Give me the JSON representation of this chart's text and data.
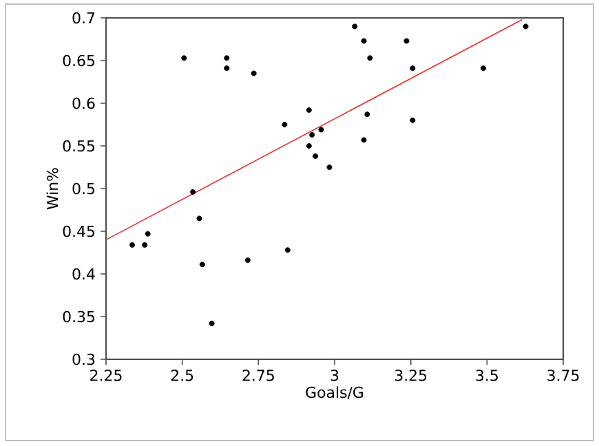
{
  "chart_data": {
    "type": "scatter",
    "xlabel": "Goals/G",
    "ylabel": "Win%",
    "xlim": [
      2.25,
      3.75
    ],
    "ylim": [
      0.3,
      0.7
    ],
    "xticks": [
      2.25,
      2.5,
      2.75,
      3,
      3.25,
      3.5,
      3.75
    ],
    "yticks": [
      0.3,
      0.35,
      0.4,
      0.45,
      0.5,
      0.55,
      0.6,
      0.65,
      0.7
    ],
    "grid": false,
    "series": [
      {
        "color": "#000000",
        "x": [
          2.506,
          2.646,
          2.646,
          2.735,
          2.836,
          2.916,
          2.926,
          2.916,
          2.937,
          2.956,
          2.983,
          2.535,
          3.066,
          3.096,
          3.236,
          3.116,
          3.256,
          3.488,
          3.627,
          3.107,
          3.256,
          3.096,
          2.336,
          2.377,
          2.387,
          2.556,
          2.566,
          2.597,
          2.715,
          2.846
        ],
        "values": [
          0.653,
          0.653,
          0.641,
          0.635,
          0.575,
          0.592,
          0.563,
          0.55,
          0.538,
          0.569,
          0.525,
          0.496,
          0.69,
          0.673,
          0.673,
          0.653,
          0.641,
          0.641,
          0.69,
          0.587,
          0.58,
          0.557,
          0.434,
          0.434,
          0.447,
          0.465,
          0.411,
          0.342,
          0.416,
          0.428
        ]
      },
      {
        "type": "line",
        "color": "#e8302a",
        "x": [
          2.25,
          3.615
        ],
        "values": [
          0.44,
          0.698
        ]
      }
    ]
  }
}
